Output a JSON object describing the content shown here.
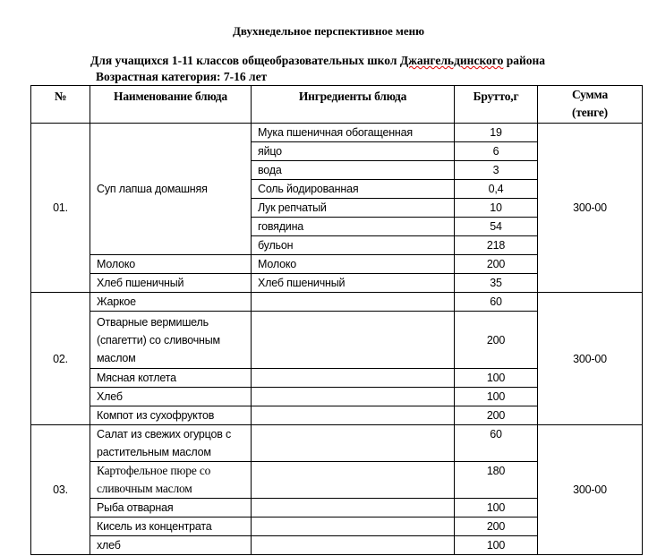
{
  "title": "Двухнедельное перспективное меню",
  "subtitle_prefix": "Для учащихся 1-11 классов общеобразовательных школ ",
  "subtitle_district": "Джангельдинского",
  "subtitle_suffix": " района",
  "age_category": "Возрастная категория: 7-16 лет",
  "headers": [
    "№",
    "Наименование блюда",
    "Ингредиенты блюда",
    "Брутто,г",
    "Сумма (тенге)"
  ],
  "sections": [
    {
      "number": "01.",
      "sum": "300-00",
      "rows": [
        {
          "dish": "Суп лапша домашняя",
          "span": 7,
          "ingredients": [
            {
              "name": "Мука пшеничная обогащенная",
              "brutto": "19"
            },
            {
              "name": "яйцо",
              "brutto": "6"
            },
            {
              "name": "вода",
              "brutto": "3"
            },
            {
              "name": "Соль йодированная",
              "brutto": "0,4"
            },
            {
              "name": "Лук репчатый",
              "brutto": "10"
            },
            {
              "name": "говядина",
              "brutto": "54"
            },
            {
              "name": "бульон",
              "brutto": "218"
            }
          ]
        },
        {
          "dish": "Молоко",
          "ingredients": [
            {
              "name": "Молоко",
              "brutto": "200"
            }
          ]
        },
        {
          "dish": "Хлеб пшеничный",
          "ingredients": [
            {
              "name": "Хлеб пшеничный",
              "brutto": "35"
            }
          ]
        }
      ]
    },
    {
      "number": "02.",
      "sum": "300-00",
      "rows": [
        {
          "dish": "Жаркое",
          "ingredients": [
            {
              "name": "",
              "brutto": "60"
            }
          ]
        },
        {
          "dish": "Отварные вермишель (спагетти)  со сливочным маслом",
          "ingredients": [
            {
              "name": "",
              "brutto": "200"
            }
          ],
          "lines": 3,
          "valign": "middle"
        },
        {
          "dish": "Мясная котлета",
          "ingredients": [
            {
              "name": "",
              "brutto": "100"
            }
          ]
        },
        {
          "dish": "Хлеб",
          "ingredients": [
            {
              "name": "",
              "brutto": "100"
            }
          ]
        },
        {
          "dish": "Компот из сухофруктов",
          "ingredients": [
            {
              "name": "",
              "brutto": "200"
            }
          ]
        }
      ]
    },
    {
      "number": "03.",
      "sum": "300-00",
      "rows": [
        {
          "dish": "Салат из свежих огурцов с растительным маслом",
          "ingredients": [
            {
              "name": "",
              "brutto": "60"
            }
          ],
          "lines": 2
        },
        {
          "dish": "Картофельное пюре со сливочным маслом",
          "ingredients": [
            {
              "name": "",
              "brutto": "180"
            }
          ],
          "lines": 2,
          "serif": true
        },
        {
          "dish": "Рыба отварная",
          "ingredients": [
            {
              "name": "",
              "brutto": "100"
            }
          ]
        },
        {
          "dish": "Кисель из концентрата",
          "ingredients": [
            {
              "name": "",
              "brutto": "200"
            }
          ]
        },
        {
          "dish": "хлеб",
          "ingredients": [
            {
              "name": "",
              "brutto": "100"
            }
          ]
        }
      ]
    }
  ]
}
